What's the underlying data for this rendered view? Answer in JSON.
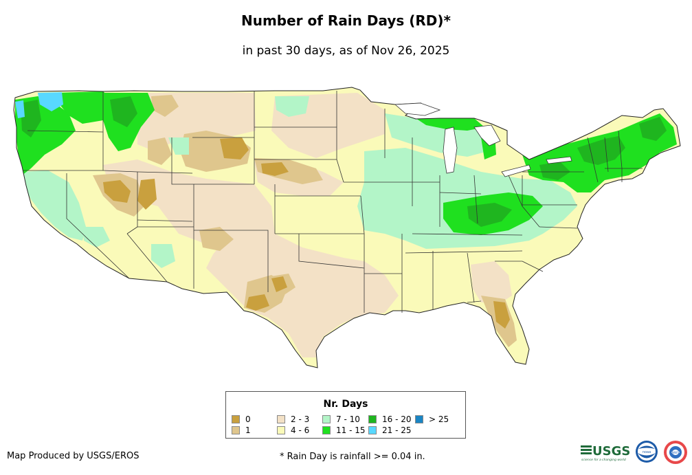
{
  "title": "Number of Rain Days (RD)*",
  "subtitle": "in past 30 days, as of Nov 26, 2025",
  "legend": {
    "title": "Nr. Days",
    "items": [
      {
        "label": "0",
        "color": "#c9a03e"
      },
      {
        "label": "1",
        "color": "#dfc68d"
      },
      {
        "label": "2 - 3",
        "color": "#f3e1c6"
      },
      {
        "label": "4 - 6",
        "color": "#fafab9"
      },
      {
        "label": "7 - 10",
        "color": "#b3f5c8"
      },
      {
        "label": "11 - 15",
        "color": "#1fe01f"
      },
      {
        "label": "16 - 20",
        "color": "#1fb51f"
      },
      {
        "label": "21 - 25",
        "color": "#58d8ff"
      },
      {
        "label": "> 25",
        "color": "#1a85c4"
      }
    ]
  },
  "footer": {
    "credit": "Map Produced by USGS/EROS",
    "note": "* Rain Day is rainfall >= 0.04 in."
  },
  "logos": {
    "usgs": "USGS",
    "usgs_tagline": "science for a changing world",
    "noaa": "noaa",
    "nws": "NWS"
  }
}
